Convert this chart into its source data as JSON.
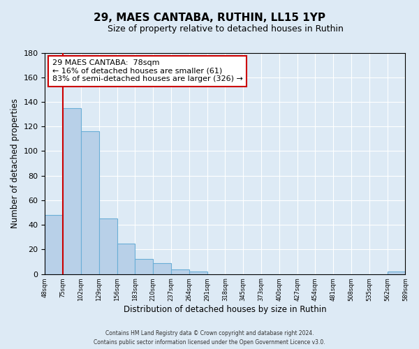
{
  "title": "29, MAES CANTABA, RUTHIN, LL15 1YP",
  "subtitle": "Size of property relative to detached houses in Ruthin",
  "xlabel": "Distribution of detached houses by size in Ruthin",
  "ylabel": "Number of detached properties",
  "bar_values": [
    48,
    135,
    116,
    45,
    25,
    12,
    9,
    4,
    2,
    0,
    0,
    0,
    0,
    0,
    0,
    0,
    0,
    0,
    0,
    2
  ],
  "bin_labels": [
    "48sqm",
    "75sqm",
    "102sqm",
    "129sqm",
    "156sqm",
    "183sqm",
    "210sqm",
    "237sqm",
    "264sqm",
    "291sqm",
    "318sqm",
    "345sqm",
    "373sqm",
    "400sqm",
    "427sqm",
    "454sqm",
    "481sqm",
    "508sqm",
    "535sqm",
    "562sqm",
    "589sqm"
  ],
  "bar_color": "#b8d0e8",
  "bar_edge_color": "#6aaed6",
  "ylim": [
    0,
    180
  ],
  "yticks": [
    0,
    20,
    40,
    60,
    80,
    100,
    120,
    140,
    160,
    180
  ],
  "marker_color": "#cc0000",
  "annotation_text": "29 MAES CANTABA:  78sqm\n← 16% of detached houses are smaller (61)\n83% of semi-detached houses are larger (326) →",
  "annotation_box_color": "#ffffff",
  "annotation_box_edge": "#cc0000",
  "footer_line1": "Contains HM Land Registry data © Crown copyright and database right 2024.",
  "footer_line2": "Contains public sector information licensed under the Open Government Licence v3.0.",
  "background_color": "#ddeaf5",
  "plot_bg_color": "#ddeaf5",
  "grid_color": "#ffffff"
}
